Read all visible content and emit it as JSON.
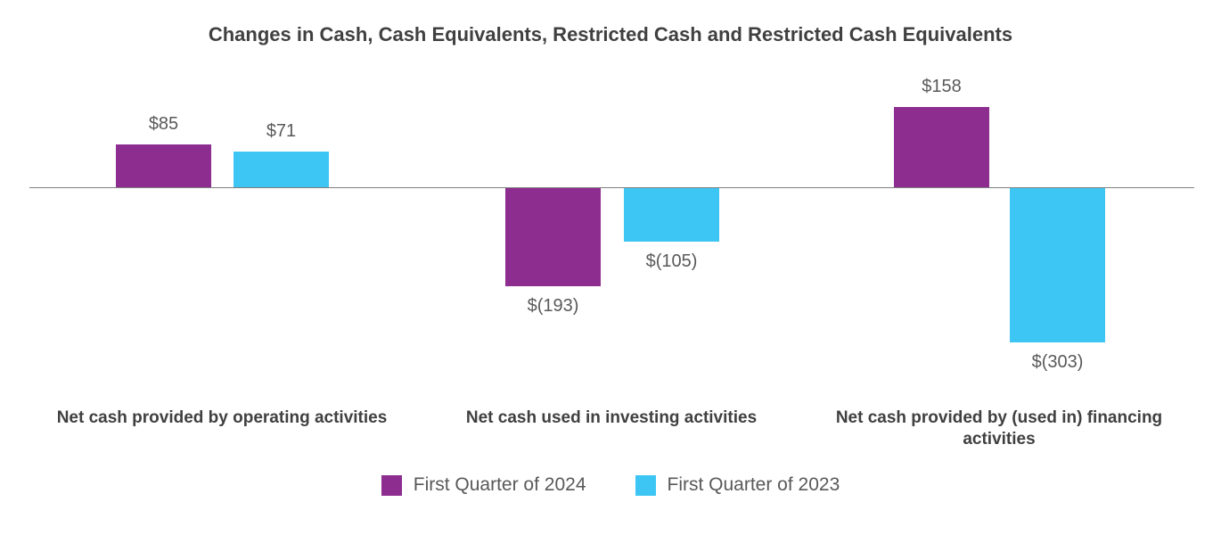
{
  "chart_data": {
    "type": "bar",
    "title": "Changes in Cash, Cash Equivalents, Restricted Cash and Restricted Cash Equivalents",
    "categories": [
      "Net cash provided by operating activities",
      "Net cash used in investing activities",
      "Net cash provided by (used in) financing activities"
    ],
    "series": [
      {
        "name": "First Quarter of 2024",
        "color": "#8C2D8F",
        "values": [
          85,
          -193,
          158
        ],
        "labels": [
          "$85",
          "$(193)",
          "$158"
        ]
      },
      {
        "name": "First Quarter of 2023",
        "color": "#3DC6F3",
        "values": [
          71,
          -105,
          -303
        ],
        "labels": [
          "$71",
          "$(105)",
          "$(303)"
        ]
      }
    ],
    "xlabel": "",
    "ylabel": "",
    "ylim": [
      -330,
      180
    ],
    "grid": false,
    "legend_position": "bottom"
  }
}
